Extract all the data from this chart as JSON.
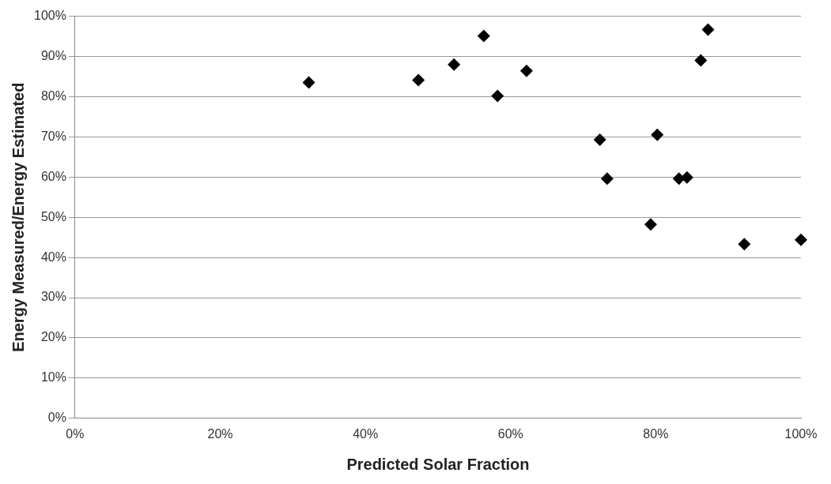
{
  "chart_data": {
    "type": "scatter",
    "xlabel": "Predicted Solar Fraction",
    "ylabel": "Energy Measured/Energy Estimated",
    "x": [
      32.2,
      47.3,
      52.2,
      56.3,
      58.2,
      62.2,
      72.3,
      73.3,
      79.3,
      80.2,
      83.2,
      84.3,
      86.2,
      87.2,
      92.2,
      100
    ],
    "series": [
      {
        "color": "#000000",
        "values": [
          83.5,
          84.1,
          88.0,
          95.1,
          80.2,
          86.4,
          69.3,
          59.6,
          48.2,
          70.5,
          59.6,
          59.9,
          89.0,
          96.7,
          43.3,
          44.4
        ]
      }
    ],
    "marker": "diamond",
    "xlim": [
      0,
      100
    ],
    "xticks": [
      {
        "value": 0,
        "label": "0%"
      },
      {
        "value": 20,
        "label": "20%"
      },
      {
        "value": 40,
        "label": "40%"
      },
      {
        "value": 60,
        "label": "60%"
      },
      {
        "value": 80,
        "label": "80%"
      },
      {
        "value": 100,
        "label": "100%"
      }
    ],
    "ylim": [
      0,
      100
    ],
    "yticks": [
      {
        "value": 0,
        "label": "0%"
      },
      {
        "value": 10,
        "label": "10%"
      },
      {
        "value": 20,
        "label": "20%"
      },
      {
        "value": 30,
        "label": "30%"
      },
      {
        "value": 40,
        "label": "40%"
      },
      {
        "value": 50,
        "label": "50%"
      },
      {
        "value": 60,
        "label": "60%"
      },
      {
        "value": 70,
        "label": "70%"
      },
      {
        "value": 80,
        "label": "80%"
      },
      {
        "value": 90,
        "label": "90%"
      },
      {
        "value": 100,
        "label": "100%"
      }
    ],
    "grid": "y",
    "legend": false
  }
}
